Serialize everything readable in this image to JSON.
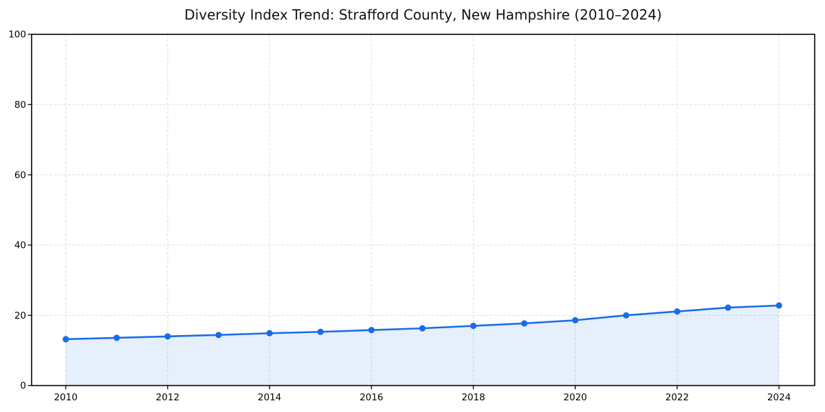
{
  "chart_data": {
    "type": "area",
    "title": "Diversity Index Trend: Strafford County, New Hampshire (2010–2024)",
    "xlabel": "",
    "ylabel": "",
    "x": [
      2010,
      2011,
      2012,
      2013,
      2014,
      2015,
      2016,
      2017,
      2018,
      2019,
      2020,
      2021,
      2022,
      2023,
      2024
    ],
    "values": [
      13.2,
      13.6,
      14.0,
      14.4,
      14.9,
      15.3,
      15.8,
      16.3,
      17.0,
      17.7,
      18.6,
      20.0,
      21.1,
      22.2,
      22.8
    ],
    "xticks": [
      2010,
      2012,
      2014,
      2016,
      2018,
      2020,
      2022,
      2024
    ],
    "yticks": [
      0,
      20,
      40,
      60,
      80,
      100
    ],
    "xlim": [
      2009.33,
      2024.7
    ],
    "ylim": [
      0,
      100
    ],
    "grid": true,
    "grid_style": "dashed",
    "grid_color": "#dcdcdc",
    "legend": "none",
    "line_color": "#1a6ce6",
    "fill_opacity": 0.11,
    "marker": "circle",
    "spine_color": "#000000"
  }
}
